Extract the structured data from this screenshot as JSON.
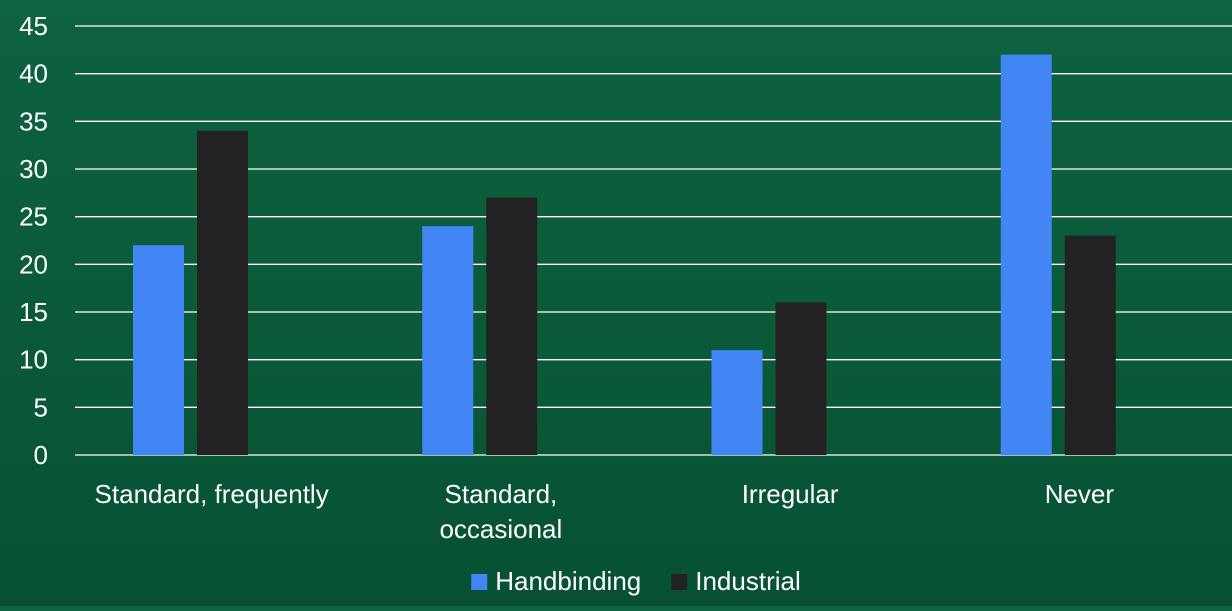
{
  "chart_data": {
    "type": "bar",
    "categories": [
      [
        "Standard, frequently"
      ],
      [
        "Standard,",
        "occasional"
      ],
      [
        "Irregular"
      ],
      [
        "Never"
      ]
    ],
    "series": [
      {
        "name": "Handbinding",
        "color": "#4285f4",
        "values": [
          22,
          24,
          11,
          42
        ]
      },
      {
        "name": "Industrial",
        "color": "#222222",
        "values": [
          34,
          27,
          16,
          23
        ]
      }
    ],
    "ylim": [
      0,
      45
    ],
    "yticks": [
      0,
      5,
      10,
      15,
      20,
      25,
      30,
      35,
      40,
      45
    ],
    "grid": true,
    "legend": "bottom-center",
    "colors": {
      "background": "#0b5c3c",
      "gridline": "#ffffff",
      "text": "#ffffff"
    }
  }
}
